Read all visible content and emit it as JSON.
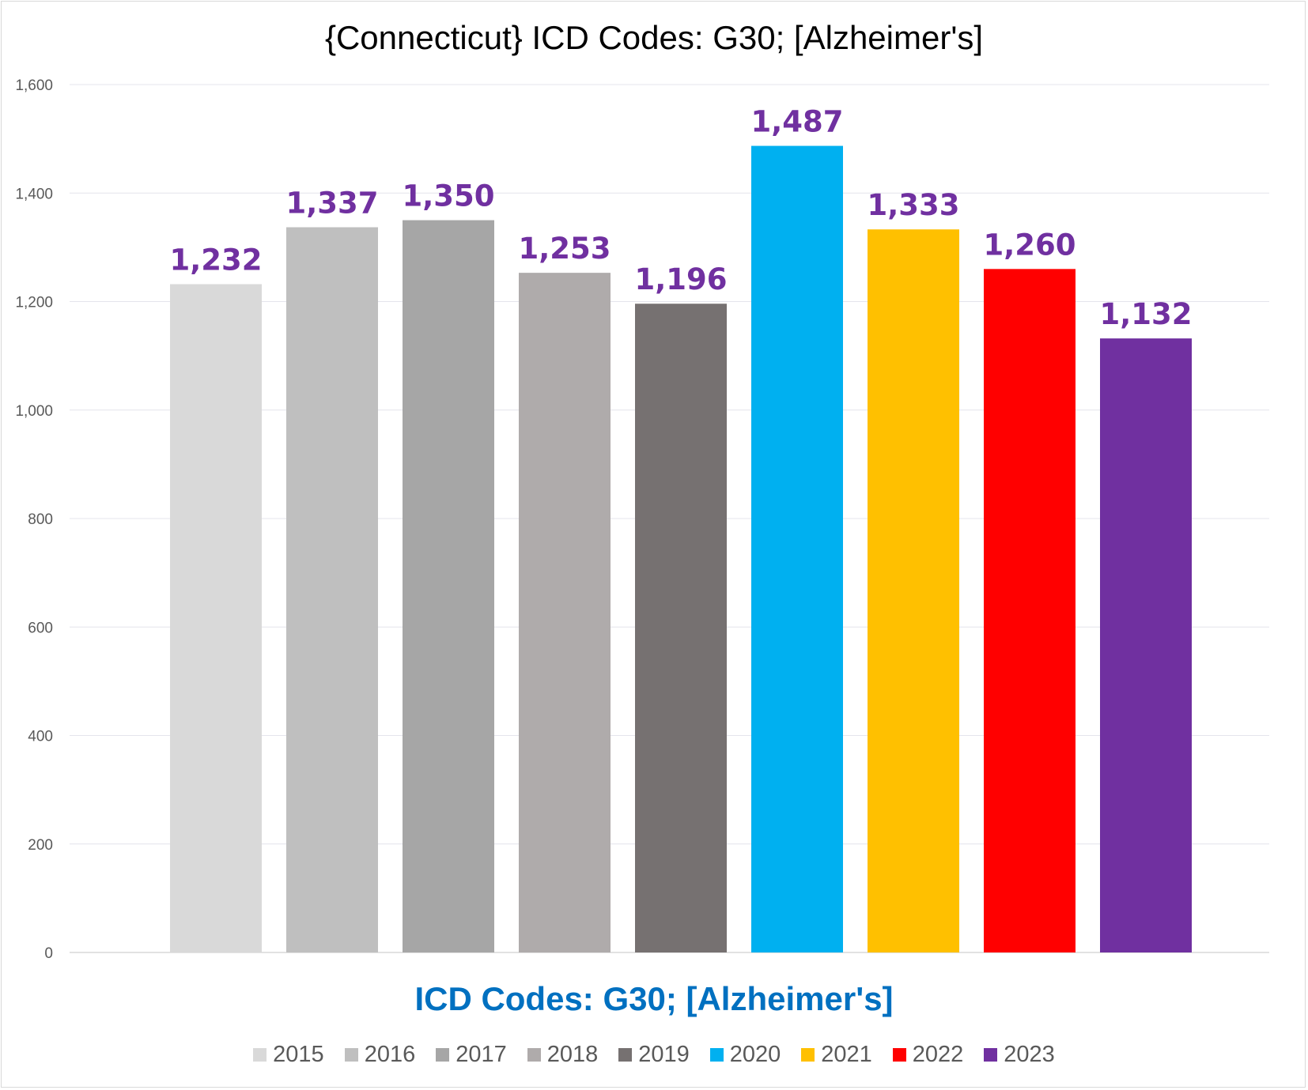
{
  "chart_data": {
    "type": "bar",
    "title": "{Connecticut}  ICD Codes: G30;  [Alzheimer's]",
    "xlabel": "ICD Codes: G30;  [Alzheimer's]",
    "ylabel": "",
    "ylim": [
      0,
      1600
    ],
    "yticks": [
      "0",
      "200",
      "400",
      "600",
      "800",
      "1,000",
      "1,200",
      "1,400",
      "1,600"
    ],
    "categories": [
      "2015",
      "2016",
      "2017",
      "2018",
      "2019",
      "2020",
      "2021",
      "2022",
      "2023"
    ],
    "values": [
      1232,
      1337,
      1350,
      1253,
      1196,
      1487,
      1333,
      1260,
      1132
    ],
    "data_labels": [
      "1,232",
      "1,337",
      "1,350",
      "1,253",
      "1,196",
      "1,487",
      "1,333",
      "1,260",
      "1,132"
    ],
    "colors": [
      "#d9d9d9",
      "#bfbfbf",
      "#a6a6a6",
      "#afabab",
      "#767171",
      "#00b0f0",
      "#ffc000",
      "#ff0000",
      "#7030a0"
    ],
    "data_label_color": "#7030a0",
    "xlabel_color": "#0070c0",
    "grid": true,
    "legend_position": "bottom"
  }
}
